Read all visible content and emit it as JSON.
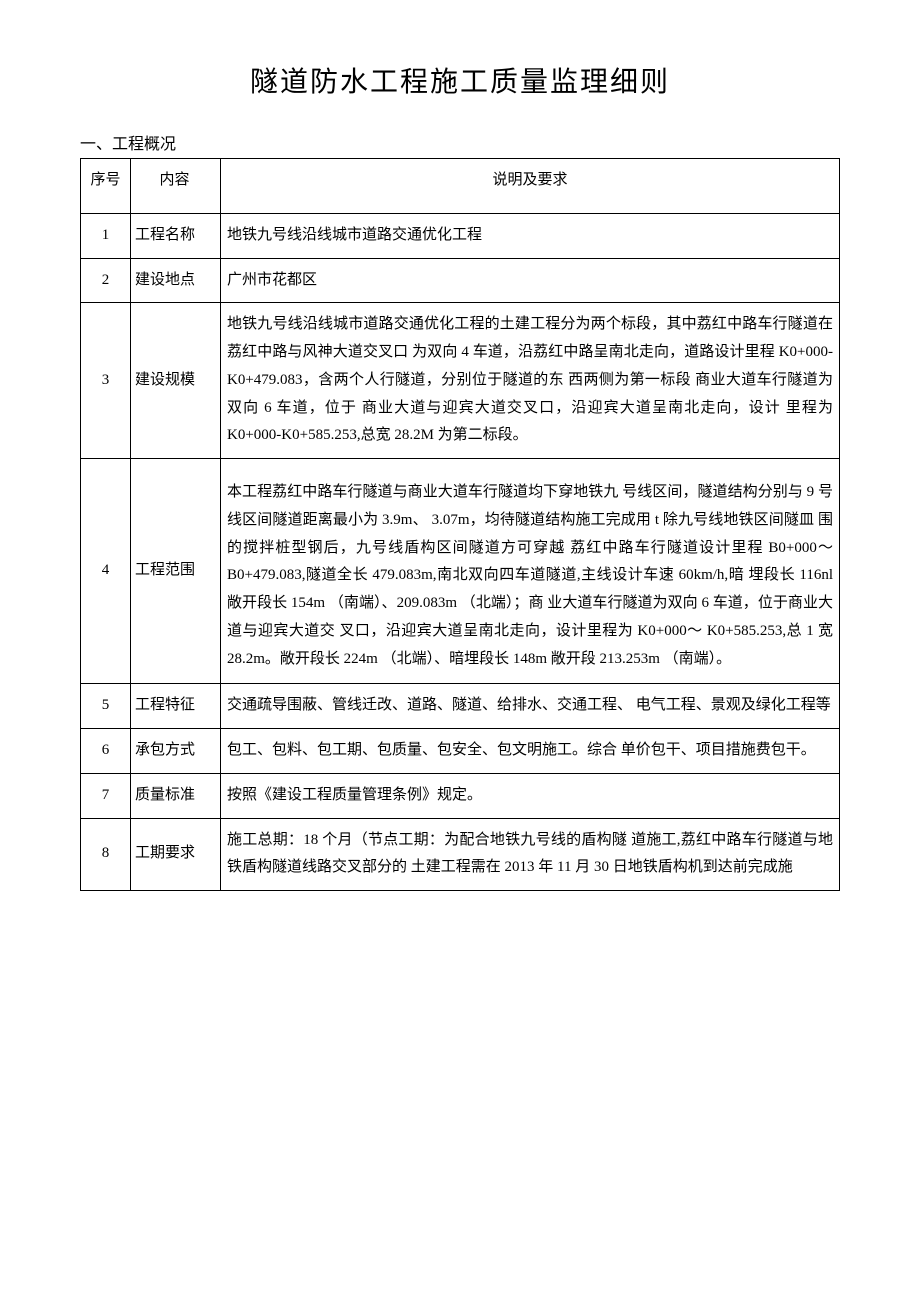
{
  "title": "隧道防水工程施工质量监理细则",
  "section_heading": "一、工程概况",
  "headers": {
    "seq": "序号",
    "item": "内容",
    "desc": "说明及要求"
  },
  "rows": [
    {
      "seq": "1",
      "item": "工程名称",
      "desc": "地铁九号线沿线城市道路交通优化工程"
    },
    {
      "seq": "2",
      "item": "建设地点",
      "desc": "广州市花都区"
    },
    {
      "seq": "3",
      "item": "建设规模",
      "desc": "地铁九号线沿线城市道路交通优化工程的土建工程分为两个标段，其中荔红中路车行隧道在荔红中路与风神大道交叉口 为双向 4 车道，沿荔红中路呈南北走向，道路设计里程 K0+000- K0+479.083，含两个人行隧道，分别位于隧道的东 西两侧为第一标段 商业大道车行隧道为双向 6 车道，位于\n商业大道与迎宾大道交叉口，沿迎宾大道呈南北走向，设计 里程为 K0+000-K0+585.253,总宽 28.2M 为第二标段。"
    },
    {
      "seq": "4",
      "item": "工程范围",
      "desc": "本工程荔红中路车行隧道与商业大道车行隧道均下穿地铁九 号线区间，隧道结构分别与 9 号线区间隧道距离最小为 3.9m、 3.07m，均待隧道结构施工完成用 t 除九号线地铁区间隧皿 围的搅拌桩型钢后，九号线盾构区间隧道方可穿越 荔红中路车行隧道设计里程 B0+000～B0+479.083,隧道全长 479.083m,南北双向四车道隧道,主线设计车速 60km/h,暗 埋段长 116nl 敞开段长 154m （南端）、209.083m （北端）；商 业大道车行隧道为双向 6 车道，位于商业大道与迎宾大道交 叉口，沿迎宾大道呈南北走向，设计里程为 K0+000～ K0+585.253,总 1 宽 28.2m。敞开段长 224m （北端）、暗埋段长 148m 敞开段 213.253m （南端）。"
    },
    {
      "seq": "5",
      "item": "工程特征",
      "desc": "交通疏导围蔽、管线迁改、道路、隧道、给排水、交通工程、 电气工程、景观及绿化工程等"
    },
    {
      "seq": "6",
      "item": "承包方式",
      "desc": "包工、包料、包工期、包质量、包安全、包文明施工。综合 单价包干、项目措施费包干。"
    },
    {
      "seq": "7",
      "item": "质量标准",
      "desc": "按照《建设工程质量管理条例》规定。"
    },
    {
      "seq": "8",
      "item": "工期要求",
      "desc": "施工总期：18 个月（节点工期：为配合地铁九号线的盾构隧 道施工,荔红中路车行隧道与地铁盾构隧道线路交叉部分的 土建工程需在 2013 年 11 月 30 日地铁盾构机到达前完成施"
    }
  ]
}
